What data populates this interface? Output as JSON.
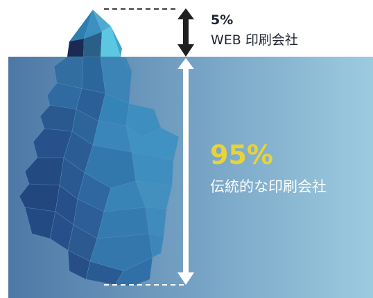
{
  "above_water": {
    "percent": "5%",
    "label": "WEB 印刷会社"
  },
  "below_water": {
    "percent": "95%",
    "label": "伝統的な印刷会社"
  },
  "colors": {
    "water_left": "#4d78a6",
    "water_right": "#9ccbe0",
    "arrow_above": "#1f1f1f",
    "arrow_below": "#ffffff",
    "highlight_percent": "#e8d33a",
    "ice_dark": "#1e3f73",
    "ice_mid": "#2f6ea3",
    "ice_light": "#4fb7d8"
  }
}
